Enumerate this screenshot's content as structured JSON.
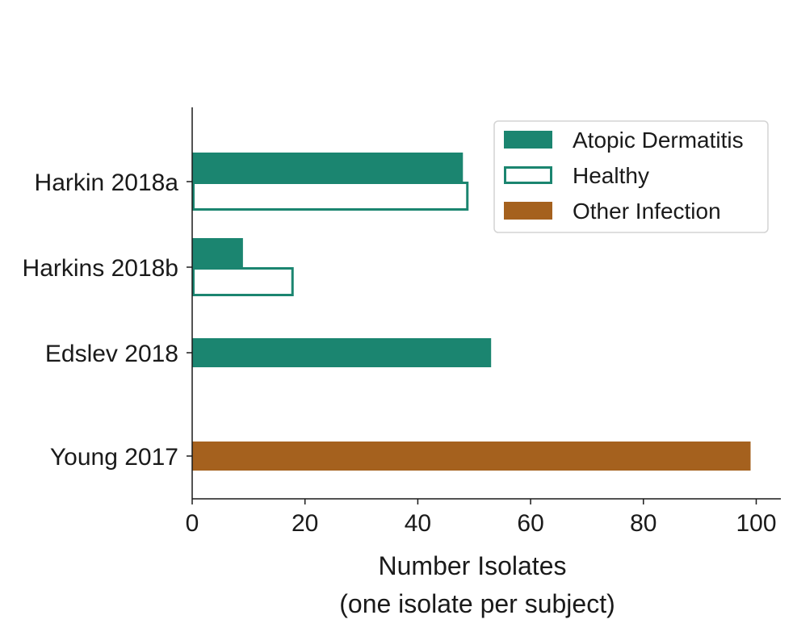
{
  "chart_data": {
    "type": "bar",
    "orientation": "horizontal",
    "categories": [
      "Harkin 2018a",
      "Harkins 2018b",
      "Edslev 2018",
      "Young 2017"
    ],
    "series": [
      {
        "name": "Atopic Dermatitis",
        "style": "filled",
        "color": "#1b8570",
        "values": [
          48,
          9,
          53,
          null
        ]
      },
      {
        "name": "Healthy",
        "style": "outline",
        "color": "#1b8570",
        "values": [
          49,
          18,
          null,
          null
        ]
      },
      {
        "name": "Other Infection",
        "style": "filled",
        "color": "#a5611e",
        "values": [
          null,
          null,
          null,
          99
        ]
      }
    ],
    "xlabel": [
      "Number Isolates",
      "(one isolate per subject)"
    ],
    "xticks": [
      0,
      20,
      40,
      60,
      80,
      100
    ],
    "xlim": [
      0,
      104
    ],
    "grid": false,
    "legend_position": "top-right"
  }
}
